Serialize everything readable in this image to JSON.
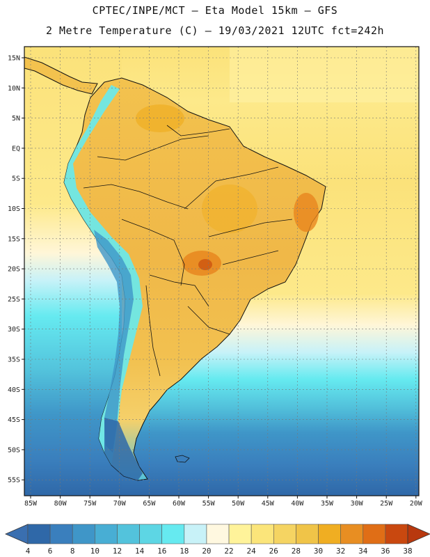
{
  "header": {
    "title_line1": "CPTEC/INPE/MCT  –  Eta Model 15km  –  GFS",
    "title_line2": "2 Metre Temperature (C) – 19/03/2021 12UTC fct=242h"
  },
  "map": {
    "lat_labels": [
      "15N",
      "10N",
      "5N",
      "EQ",
      "5S",
      "10S",
      "15S",
      "20S",
      "25S",
      "30S",
      "35S",
      "40S",
      "45S",
      "50S",
      "55S"
    ],
    "lon_labels": [
      "85W",
      "80W",
      "75W",
      "70W",
      "65W",
      "60W",
      "55W",
      "50W",
      "45W",
      "40W",
      "35W",
      "30W",
      "25W",
      "20W"
    ]
  },
  "colorbar": {
    "labels": [
      "4",
      "6",
      "8",
      "10",
      "12",
      "14",
      "16",
      "18",
      "20",
      "22",
      "24",
      "26",
      "28",
      "30",
      "32",
      "34",
      "36",
      "38"
    ],
    "low_color": "#3a6fb0",
    "high_color": "#b8380e",
    "colors": [
      "#2f68a8",
      "#3a7fbd",
      "#3f96c8",
      "#48aed4",
      "#53c3dc",
      "#5dd6e4",
      "#66eaf0",
      "#c8f2f8",
      "#fff8e0",
      "#fff39a",
      "#fbe57a",
      "#f5d462",
      "#f0c448",
      "#f0ae22",
      "#e88e22",
      "#e06e16",
      "#c9480f"
    ]
  }
}
